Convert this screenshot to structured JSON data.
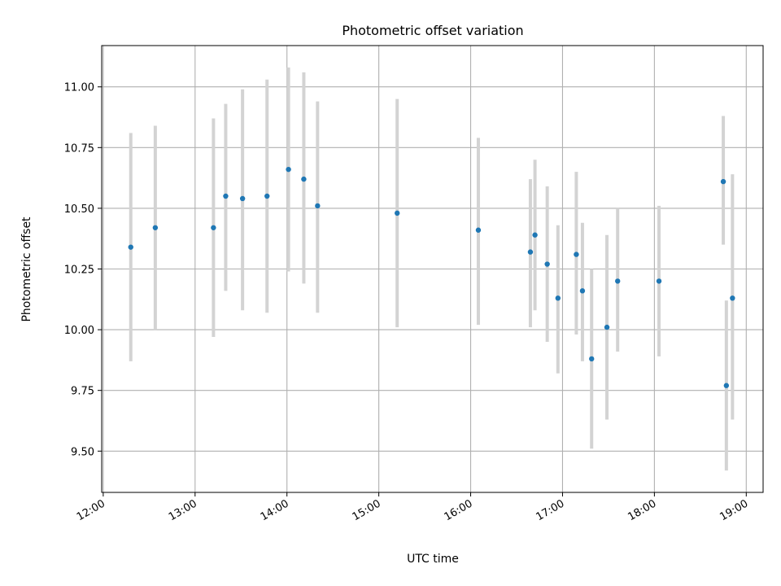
{
  "chart_data": {
    "type": "scatter",
    "title": "Photometric offset variation",
    "xlabel": "UTC time",
    "ylabel": "Photometric offset",
    "x_ticks": [
      "12:00",
      "13:00",
      "14:00",
      "15:00",
      "16:00",
      "17:00",
      "18:00",
      "19:00"
    ],
    "y_ticks": [
      "9.50",
      "9.75",
      "10.00",
      "10.25",
      "10.50",
      "10.75",
      "11.00"
    ],
    "xlim": [
      "11:59",
      "19:11"
    ],
    "ylim": [
      9.33,
      11.17
    ],
    "grid": true,
    "colors": {
      "points": "#1f77b4",
      "error_bars": "#d3d3d3"
    },
    "series": [
      {
        "points": [
          {
            "x": "12:18",
            "y": 10.34,
            "yerr_low": 9.87,
            "yerr_high": 10.81
          },
          {
            "x": "12:34",
            "y": 10.42,
            "yerr_low": 10.0,
            "yerr_high": 10.84
          },
          {
            "x": "13:12",
            "y": 10.42,
            "yerr_low": 9.97,
            "yerr_high": 10.87
          },
          {
            "x": "13:20",
            "y": 10.55,
            "yerr_low": 10.16,
            "yerr_high": 10.93
          },
          {
            "x": "13:31",
            "y": 10.54,
            "yerr_low": 10.08,
            "yerr_high": 10.99
          },
          {
            "x": "13:47",
            "y": 10.55,
            "yerr_low": 10.07,
            "yerr_high": 11.03
          },
          {
            "x": "14:01",
            "y": 10.66,
            "yerr_low": 10.24,
            "yerr_high": 11.08
          },
          {
            "x": "14:11",
            "y": 10.62,
            "yerr_low": 10.19,
            "yerr_high": 11.06
          },
          {
            "x": "14:20",
            "y": 10.51,
            "yerr_low": 10.07,
            "yerr_high": 10.94
          },
          {
            "x": "15:12",
            "y": 10.48,
            "yerr_low": 10.01,
            "yerr_high": 10.95
          },
          {
            "x": "16:05",
            "y": 10.41,
            "yerr_low": 10.02,
            "yerr_high": 10.79
          },
          {
            "x": "16:39",
            "y": 10.32,
            "yerr_low": 10.01,
            "yerr_high": 10.62
          },
          {
            "x": "16:42",
            "y": 10.39,
            "yerr_low": 10.08,
            "yerr_high": 10.7
          },
          {
            "x": "16:50",
            "y": 10.27,
            "yerr_low": 9.95,
            "yerr_high": 10.59
          },
          {
            "x": "16:57",
            "y": 10.13,
            "yerr_low": 9.82,
            "yerr_high": 10.43
          },
          {
            "x": "17:09",
            "y": 10.31,
            "yerr_low": 9.98,
            "yerr_high": 10.65
          },
          {
            "x": "17:13",
            "y": 10.16,
            "yerr_low": 9.87,
            "yerr_high": 10.44
          },
          {
            "x": "17:19",
            "y": 9.88,
            "yerr_low": 9.51,
            "yerr_high": 10.25
          },
          {
            "x": "17:29",
            "y": 10.01,
            "yerr_low": 9.63,
            "yerr_high": 10.39
          },
          {
            "x": "17:36",
            "y": 10.2,
            "yerr_low": 9.91,
            "yerr_high": 10.5
          },
          {
            "x": "18:03",
            "y": 10.2,
            "yerr_low": 9.89,
            "yerr_high": 10.51
          },
          {
            "x": "18:45",
            "y": 10.61,
            "yerr_low": 10.35,
            "yerr_high": 10.88
          },
          {
            "x": "18:47",
            "y": 9.77,
            "yerr_low": 9.42,
            "yerr_high": 10.12
          },
          {
            "x": "18:51",
            "y": 10.13,
            "yerr_low": 9.63,
            "yerr_high": 10.64
          }
        ]
      }
    ]
  }
}
